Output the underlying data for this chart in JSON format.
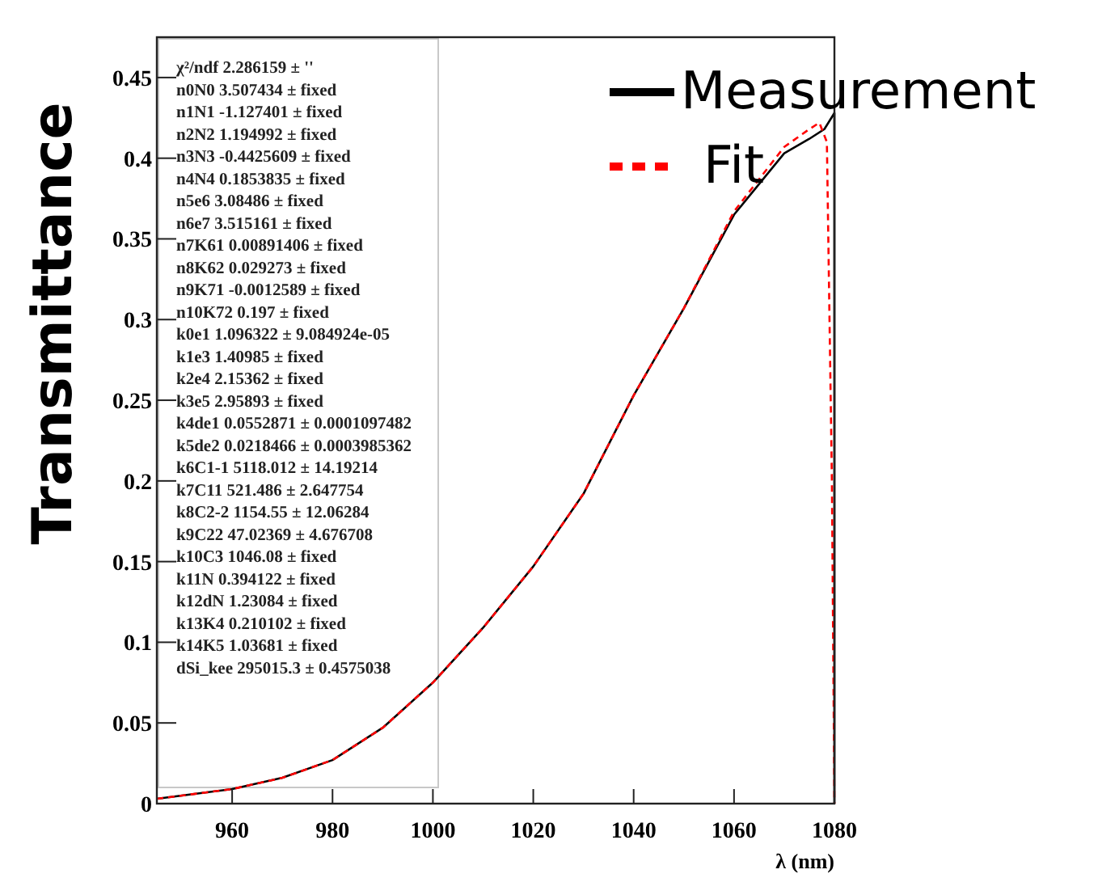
{
  "chart_data": {
    "type": "line",
    "xlabel": "λ (nm)",
    "ylabel": "Transmittance",
    "xlim": [
      945,
      1080
    ],
    "xticks": [
      960,
      980,
      1000,
      1020,
      1040,
      1060,
      1080
    ],
    "ylim": [
      0,
      0.475
    ],
    "yticks": [
      0,
      0.05,
      0.1,
      0.15,
      0.2,
      0.25,
      0.3,
      0.35,
      0.4,
      0.45
    ],
    "grid": false,
    "legend": "top right",
    "series": [
      {
        "name": "Measurement",
        "color": "#000000",
        "line_style": "solid",
        "x": [
          945,
          950,
          960,
          970,
          980,
          990,
          1000,
          1010,
          1020,
          1030,
          1040,
          1050,
          1060,
          1070,
          1075,
          1078,
          1080,
          1080
        ],
        "values": [
          0.003,
          0.005,
          0.009,
          0.016,
          0.027,
          0.047,
          0.075,
          0.109,
          0.147,
          0.192,
          0.253,
          0.307,
          0.365,
          0.403,
          0.412,
          0.418,
          0.428,
          0
        ]
      },
      {
        "name": "Fit",
        "color": "#ff0000",
        "line_style": "dashed",
        "x": [
          945,
          950,
          960,
          970,
          980,
          990,
          1000,
          1010,
          1020,
          1030,
          1040,
          1050,
          1060,
          1070,
          1075,
          1077,
          1078.5,
          1079.5,
          1080
        ],
        "values": [
          0.003,
          0.005,
          0.009,
          0.016,
          0.027,
          0.047,
          0.075,
          0.109,
          0.147,
          0.192,
          0.253,
          0.307,
          0.367,
          0.407,
          0.418,
          0.422,
          0.41,
          0.2,
          0
        ]
      }
    ],
    "annotations": [
      "χ²/ndf  2.286159 ± ''",
      "n0N0  3.507434 ± fixed",
      "n1N1  -1.127401 ± fixed",
      "n2N2  1.194992 ± fixed",
      "n3N3  -0.4425609 ± fixed",
      "n4N4  0.1853835 ± fixed",
      "n5e6  3.08486 ± fixed",
      "n6e7  3.515161 ± fixed",
      "n7K61  0.00891406 ± fixed",
      "n8K62  0.029273 ± fixed",
      "n9K71  -0.0012589 ± fixed",
      "n10K72  0.197 ± fixed",
      "k0e1  1.096322 ± 9.084924e-05",
      "k1e3  1.40985 ± fixed",
      "k2e4  2.15362 ± fixed",
      "k3e5  2.95893 ± fixed",
      "k4de1  0.0552871 ± 0.0001097482",
      "k5de2  0.0218466 ± 0.0003985362",
      "k6C1-1  5118.012 ± 14.19214",
      "k7C11  521.486 ± 2.647754",
      "k8C2-2  1154.55 ± 12.06284",
      "k9C22  47.02369 ± 4.676708",
      "k10C3  1046.08 ± fixed",
      "k11N  0.394122 ± fixed",
      "k12dN  1.23084 ± fixed",
      "k13K4  0.210102 ± fixed",
      "k14K5  1.03681 ± fixed",
      "dSi_kee  295015.3 ± 0.4575038"
    ]
  }
}
